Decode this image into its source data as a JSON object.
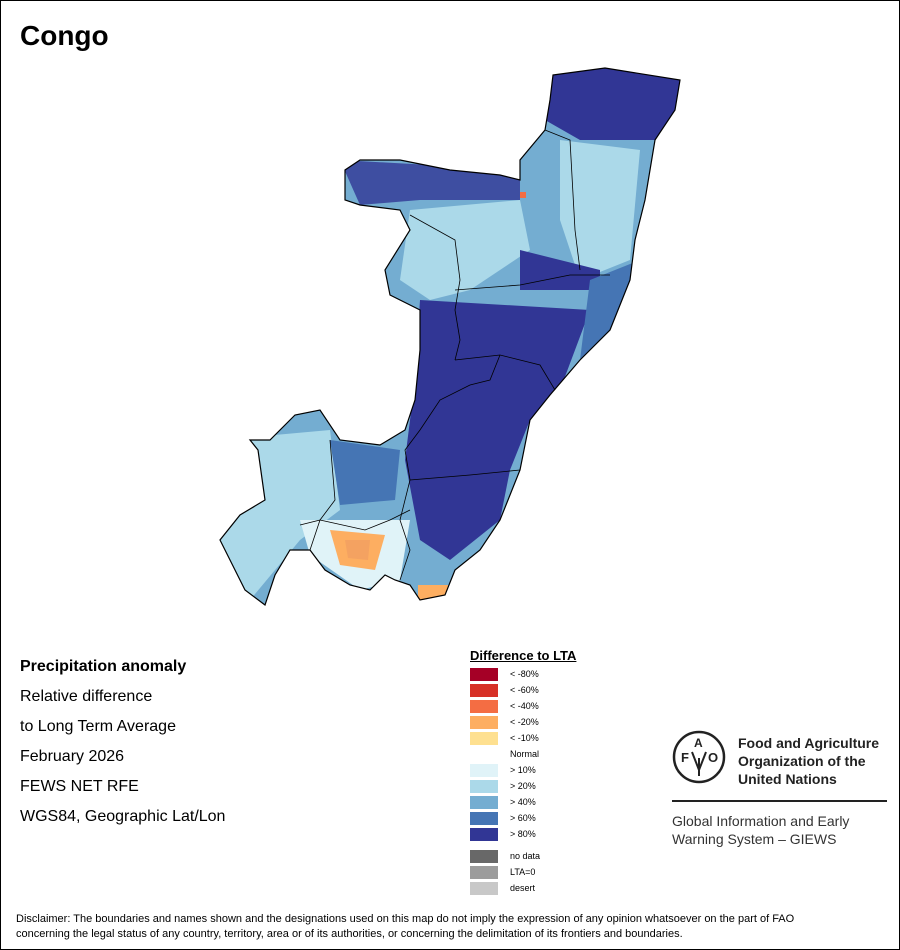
{
  "title": "Congo",
  "info": {
    "heading": "Precipitation anomaly",
    "line1": "Relative difference",
    "line2": "to Long Term Average",
    "period": "February 2026",
    "source": "FEWS NET RFE",
    "projection": "WGS84, Geographic Lat/Lon"
  },
  "legend": {
    "title": "Difference to LTA",
    "items": [
      {
        "label": "< -80%",
        "color": "#a50026"
      },
      {
        "label": "< -60%",
        "color": "#d73027"
      },
      {
        "label": "< -40%",
        "color": "#f46d43"
      },
      {
        "label": "< -20%",
        "color": "#fdae61"
      },
      {
        "label": "< -10%",
        "color": "#fee090"
      },
      {
        "label": "Normal",
        "color": "#ffffff"
      },
      {
        "label": "> 10%",
        "color": "#e0f3f8"
      },
      {
        "label": "> 20%",
        "color": "#abd9e9"
      },
      {
        "label": "> 40%",
        "color": "#74add1"
      },
      {
        "label": "> 60%",
        "color": "#4575b4"
      },
      {
        "label": "> 80%",
        "color": "#313695"
      }
    ],
    "extra": [
      {
        "label": "no data",
        "color": "#686868"
      },
      {
        "label": "LTA=0",
        "color": "#9c9c9c"
      },
      {
        "label": "desert",
        "color": "#c8c8c8"
      }
    ]
  },
  "logo": {
    "org_line1": "Food and Agriculture",
    "org_line2": "Organization of the",
    "org_line3": "United Nations",
    "giews_line1": "Global Information and Early",
    "giews_line2": "Warning System – GIEWS",
    "emblem_text": "FAO FIAT PANIS"
  },
  "disclaimer": {
    "line1": "Disclaimer: The boundaries and names shown and the designations used on this map do not imply the expression of any opinion whatsoever on the part of FAO",
    "line2": "concerning the legal status of any country, territory, area or of its authorities, or concerning the delimitation of its frontiers and boundaries."
  }
}
